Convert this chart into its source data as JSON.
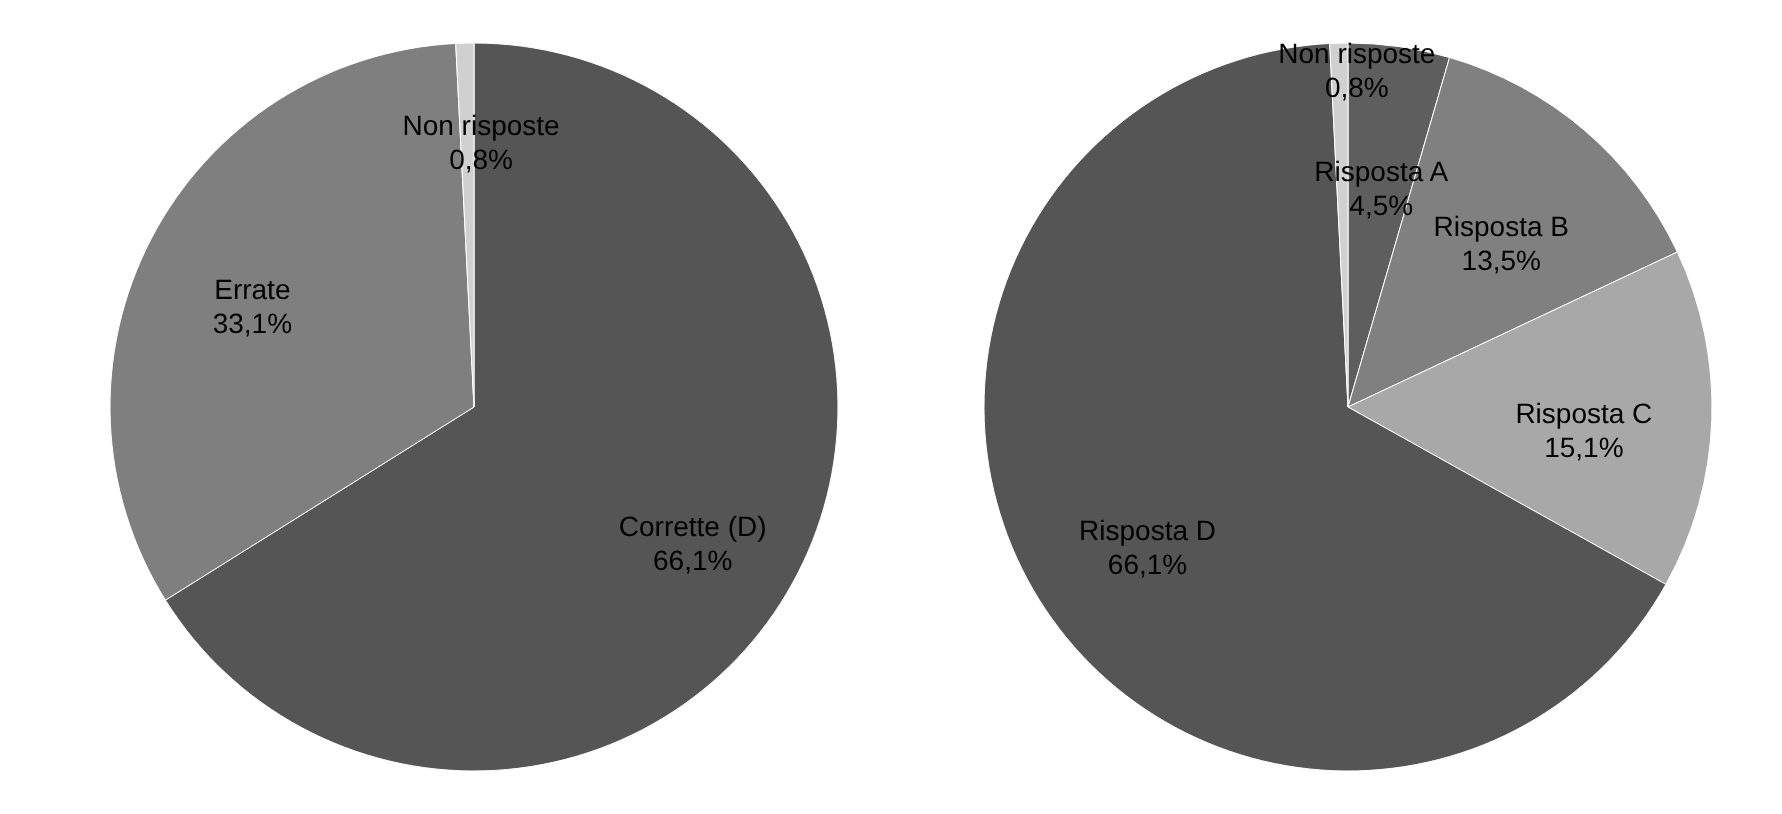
{
  "chart_data": [
    {
      "type": "pie",
      "categories": [
        "Corrette (D)",
        "Errate",
        "Non risposte"
      ],
      "values": [
        66.1,
        33.1,
        0.8
      ],
      "value_labels": [
        "66,1%",
        "33,1%",
        "0,8%"
      ],
      "colors": [
        "#555555",
        "#7f7f7f",
        "#d0d0d0"
      ]
    },
    {
      "type": "pie",
      "categories": [
        "Risposta A",
        "Risposta B",
        "Risposta C",
        "Risposta D",
        "Non risposte"
      ],
      "values": [
        4.5,
        13.5,
        15.1,
        66.1,
        0.8
      ],
      "value_labels": [
        "4,5%",
        "13,5%",
        "15,1%",
        "66,1%",
        "0,8%"
      ],
      "colors": [
        "#5e5e5e",
        "#808080",
        "#a8a8a8",
        "#555555",
        "#d0d0d0"
      ]
    }
  ]
}
